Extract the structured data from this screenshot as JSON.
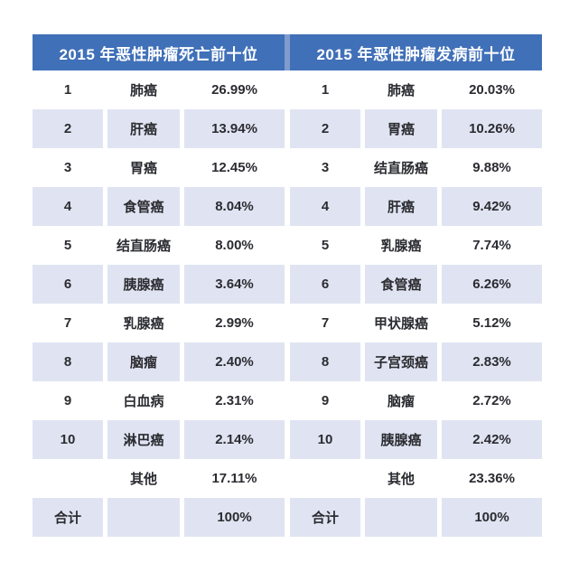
{
  "colors": {
    "header_bg": "#4070b8",
    "header_text": "#ffffff",
    "header_divider": "#7f9ccd",
    "stripe_bg": "#e0e4f2",
    "body_text": "#2b2c31",
    "page_bg": "#ffffff"
  },
  "tables": [
    {
      "id": "mortality",
      "header": "2015 年恶性肿瘤死亡前十位",
      "rows": [
        {
          "rank": "1",
          "name": "肺癌",
          "value": "26.99%"
        },
        {
          "rank": "2",
          "name": "肝癌",
          "value": "13.94%"
        },
        {
          "rank": "3",
          "name": "胃癌",
          "value": "12.45%"
        },
        {
          "rank": "4",
          "name": "食管癌",
          "value": "8.04%"
        },
        {
          "rank": "5",
          "name": "结直肠癌",
          "value": "8.00%"
        },
        {
          "rank": "6",
          "name": "胰腺癌",
          "value": "3.64%"
        },
        {
          "rank": "7",
          "name": "乳腺癌",
          "value": "2.99%"
        },
        {
          "rank": "8",
          "name": "脑瘤",
          "value": "2.40%"
        },
        {
          "rank": "9",
          "name": "白血病",
          "value": "2.31%"
        },
        {
          "rank": "10",
          "name": "淋巴癌",
          "value": "2.14%"
        },
        {
          "rank": "",
          "name": "其他",
          "value": "17.11%"
        },
        {
          "rank": "合计",
          "name": "",
          "value": "100%"
        }
      ]
    },
    {
      "id": "incidence",
      "header": "2015 年恶性肿瘤发病前十位",
      "rows": [
        {
          "rank": "1",
          "name": "肺癌",
          "value": "20.03%"
        },
        {
          "rank": "2",
          "name": "胃癌",
          "value": "10.26%"
        },
        {
          "rank": "3",
          "name": "结直肠癌",
          "value": "9.88%"
        },
        {
          "rank": "4",
          "name": "肝癌",
          "value": "9.42%"
        },
        {
          "rank": "5",
          "name": "乳腺癌",
          "value": "7.74%"
        },
        {
          "rank": "6",
          "name": "食管癌",
          "value": "6.26%"
        },
        {
          "rank": "7",
          "name": "甲状腺癌",
          "value": "5.12%"
        },
        {
          "rank": "8",
          "name": "子宫颈癌",
          "value": "2.83%"
        },
        {
          "rank": "9",
          "name": "脑瘤",
          "value": "2.72%"
        },
        {
          "rank": "10",
          "name": "胰腺癌",
          "value": "2.42%"
        },
        {
          "rank": "",
          "name": "其他",
          "value": "23.36%"
        },
        {
          "rank": "合计",
          "name": "",
          "value": "100%"
        }
      ]
    }
  ],
  "chart_data": [
    {
      "type": "table",
      "title": "2015 年恶性肿瘤死亡前十位",
      "rows": [
        [
          "1",
          "肺癌",
          "26.99%"
        ],
        [
          "2",
          "肝癌",
          "13.94%"
        ],
        [
          "3",
          "胃癌",
          "12.45%"
        ],
        [
          "4",
          "食管癌",
          "8.04%"
        ],
        [
          "5",
          "结直肠癌",
          "8.00%"
        ],
        [
          "6",
          "胰腺癌",
          "3.64%"
        ],
        [
          "7",
          "乳腺癌",
          "2.99%"
        ],
        [
          "8",
          "脑瘤",
          "2.40%"
        ],
        [
          "9",
          "白血病",
          "2.31%"
        ],
        [
          "10",
          "淋巴癌",
          "2.14%"
        ],
        [
          "",
          "其他",
          "17.11%"
        ],
        [
          "合计",
          "",
          "100%"
        ]
      ]
    },
    {
      "type": "table",
      "title": "2015 年恶性肿瘤发病前十位",
      "rows": [
        [
          "1",
          "肺癌",
          "20.03%"
        ],
        [
          "2",
          "胃癌",
          "10.26%"
        ],
        [
          "3",
          "结直肠癌",
          "9.88%"
        ],
        [
          "4",
          "肝癌",
          "9.42%"
        ],
        [
          "5",
          "乳腺癌",
          "7.74%"
        ],
        [
          "6",
          "食管癌",
          "6.26%"
        ],
        [
          "7",
          "甲状腺癌",
          "5.12%"
        ],
        [
          "8",
          "子宫颈癌",
          "2.83%"
        ],
        [
          "9",
          "脑瘤",
          "2.72%"
        ],
        [
          "10",
          "胰腺癌",
          "2.42%"
        ],
        [
          "",
          "其他",
          "23.36%"
        ],
        [
          "合计",
          "",
          "100%"
        ]
      ]
    }
  ]
}
